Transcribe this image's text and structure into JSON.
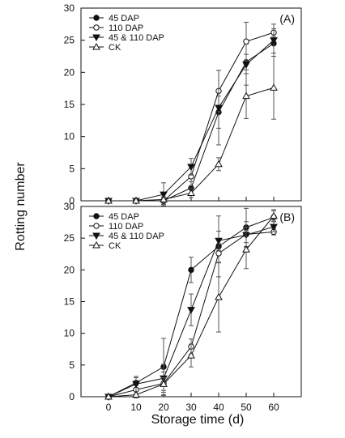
{
  "figure": {
    "ylabel": "Rotting number",
    "xlabel": "Storage time (d)"
  },
  "chart_data": [
    {
      "type": "line",
      "panel": "(A)",
      "x": [
        0,
        10,
        20,
        30,
        40,
        50,
        60
      ],
      "xlim": [
        -10,
        70
      ],
      "ylim": [
        0,
        30
      ],
      "xticks": [
        0,
        10,
        20,
        30,
        40,
        50,
        60
      ],
      "yticks": [
        0,
        5,
        10,
        15,
        20,
        25,
        30
      ],
      "xtick_labels_shown": false,
      "grid": false,
      "legend": "top-left",
      "series": [
        {
          "name": "45 DAP",
          "marker": "filled-circle",
          "values": [
            0,
            0,
            0,
            2,
            13.8,
            21.6,
            24.5
          ],
          "errors": [
            0,
            0.2,
            0.5,
            1.0,
            2.5,
            1.2,
            1.5
          ]
        },
        {
          "name": "110 DAP",
          "marker": "open-circle",
          "values": [
            0,
            0,
            0,
            3.8,
            17.1,
            24.8,
            26.2
          ],
          "errors": [
            0,
            0.2,
            0.6,
            1.5,
            3.2,
            3.0,
            0.6
          ]
        },
        {
          "name": "45 & 110 DAP",
          "marker": "filled-triangle-down",
          "values": [
            0,
            0,
            1.0,
            5.3,
            14.5,
            21.2,
            25.0
          ],
          "errors": [
            0,
            0.2,
            1.8,
            1.3,
            5.8,
            3.2,
            2.5
          ]
        },
        {
          "name": "CK",
          "marker": "open-triangle-up",
          "values": [
            0,
            0,
            0.2,
            1.2,
            5.7,
            16.3,
            17.6
          ],
          "errors": [
            0,
            0.2,
            0.4,
            0.7,
            1.0,
            3.5,
            4.9
          ]
        }
      ]
    },
    {
      "type": "line",
      "panel": "(B)",
      "x": [
        0,
        10,
        20,
        30,
        40,
        50,
        60
      ],
      "xlim": [
        -10,
        70
      ],
      "ylim": [
        0,
        30
      ],
      "xticks": [
        0,
        10,
        20,
        30,
        40,
        50,
        60
      ],
      "yticks": [
        0,
        5,
        10,
        15,
        20,
        25,
        30
      ],
      "xtick_labels_shown": true,
      "grid": false,
      "legend": "top-left",
      "series": [
        {
          "name": "45 DAP",
          "marker": "filled-circle",
          "values": [
            0,
            2.2,
            4.7,
            20.0,
            23.7,
            26.7,
            28.3
          ],
          "errors": [
            0,
            0.8,
            4.5,
            2.0,
            4.8,
            3.0,
            1.2
          ]
        },
        {
          "name": "110 DAP",
          "marker": "open-circle",
          "values": [
            0,
            1.1,
            2.1,
            7.9,
            22.6,
            25.6,
            26.0
          ],
          "errors": [
            0,
            0.7,
            1.8,
            1.2,
            1.5,
            2.0,
            0.5
          ]
        },
        {
          "name": "45 & 110 DAP",
          "marker": "filled-triangle-down",
          "values": [
            0,
            2.0,
            2.9,
            13.7,
            24.6,
            25.5,
            26.8
          ],
          "errors": [
            0,
            1.2,
            2.2,
            2.5,
            1.5,
            1.2,
            0.8
          ]
        },
        {
          "name": "CK",
          "marker": "open-triangle-up",
          "values": [
            0,
            0.3,
            2.0,
            6.5,
            15.7,
            23.2,
            28.5
          ],
          "errors": [
            0,
            0.5,
            1.0,
            1.8,
            5.5,
            3.0,
            0.8
          ]
        }
      ]
    }
  ]
}
